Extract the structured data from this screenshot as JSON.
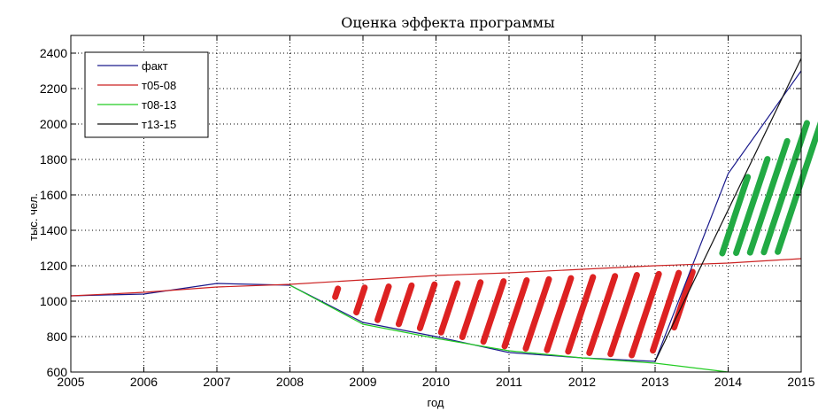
{
  "chart_data": {
    "type": "line",
    "title": "Оценка эффекта программы",
    "xlabel": "год",
    "ylabel": "тыс. чел.",
    "xlim": [
      2005,
      2015
    ],
    "ylim": [
      600,
      2500
    ],
    "xticks": [
      2005,
      2006,
      2007,
      2008,
      2009,
      2010,
      2011,
      2012,
      2013,
      2014,
      2015
    ],
    "yticks": [
      600,
      800,
      1000,
      1200,
      1400,
      1600,
      1800,
      2000,
      2200,
      2400
    ],
    "grid": true,
    "legend_position": "top-left",
    "series": [
      {
        "name": "факт",
        "color": "#1a1a8c",
        "x": [
          2005,
          2006,
          2007,
          2008,
          2009,
          2010,
          2011,
          2012,
          2013,
          2014,
          2015
        ],
        "y": [
          1030,
          1040,
          1100,
          1090,
          880,
          800,
          710,
          680,
          660,
          1720,
          2300
        ]
      },
      {
        "name": "т05-08",
        "color": "#cc2222",
        "x": [
          2005,
          2006,
          2007,
          2008,
          2009,
          2010,
          2011,
          2012,
          2013,
          2014,
          2015
        ],
        "y": [
          1030,
          1050,
          1080,
          1095,
          1120,
          1145,
          1160,
          1180,
          1200,
          1215,
          1240
        ]
      },
      {
        "name": "т08-13",
        "color": "#22cc22",
        "x": [
          2008,
          2009,
          2010,
          2011,
          2012,
          2013,
          2014
        ],
        "y": [
          1090,
          870,
          790,
          720,
          680,
          650,
          600
        ]
      },
      {
        "name": "т13-15",
        "color": "#111111",
        "x": [
          2013,
          2015
        ],
        "y": [
          660,
          2370
        ]
      }
    ],
    "hatch_regions": [
      {
        "color": "#dd2222",
        "upper": {
          "x": [
            2008.6,
            2013.5
          ],
          "y": [
            1100,
            1200
          ]
        },
        "lower": {
          "x": [
            2008.6,
            2009,
            2010,
            2011,
            2012,
            2012.9,
            2013.5
          ],
          "y": [
            1000,
            880,
            800,
            710,
            680,
            660,
            930
          ]
        }
      },
      {
        "color": "#22aa44",
        "upper": {
          "x": [
            2013.9,
            2014.8
          ],
          "y": [
            1720,
            2200
          ]
        },
        "lower": {
          "x": [
            2013.9,
            2014.8
          ],
          "y": [
            1240,
            1250
          ]
        }
      }
    ]
  }
}
